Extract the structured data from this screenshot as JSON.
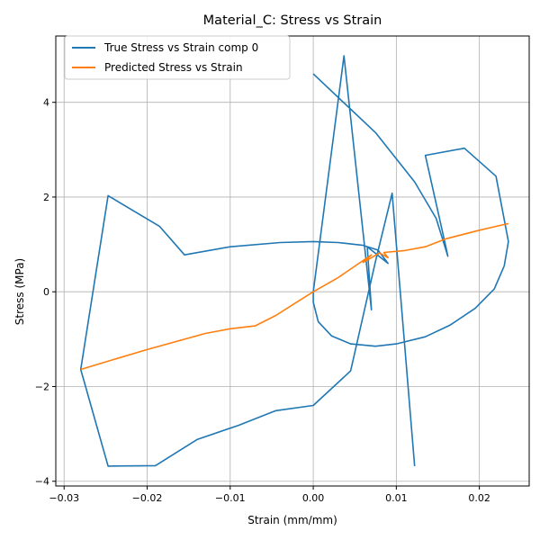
{
  "chart_data": {
    "type": "line",
    "title": "Material_C: Stress vs Strain",
    "xlabel": "Strain (mm/mm)",
    "ylabel": "Stress (MPa)",
    "xlim": [
      -0.031,
      0.026
    ],
    "ylim": [
      -4.1,
      5.4
    ],
    "xticks": [
      -0.03,
      -0.02,
      -0.01,
      0.0,
      0.01,
      0.02
    ],
    "xtick_labels": [
      "−0.03",
      "−0.02",
      "−0.01",
      "0.00",
      "0.01",
      "0.02"
    ],
    "yticks": [
      -4,
      -2,
      0,
      2,
      4
    ],
    "ytick_labels": [
      "−4",
      "−2",
      "0",
      "2",
      "4"
    ],
    "grid": true,
    "legend_position": "top-left",
    "series": [
      {
        "name": "True Stress vs Strain comp 0",
        "color": "#1f77b4",
        "points": [
          [
            0.0,
            4.6
          ],
          [
            0.0075,
            3.36
          ],
          [
            0.0122,
            2.32
          ],
          [
            0.0148,
            1.55
          ],
          [
            0.0162,
            0.75
          ],
          [
            0.0159,
            1.0
          ],
          [
            0.0135,
            2.88
          ],
          [
            0.0182,
            3.03
          ],
          [
            0.022,
            2.44
          ],
          [
            0.0235,
            1.06
          ],
          [
            0.023,
            0.55
          ],
          [
            0.0218,
            0.06
          ],
          [
            0.0195,
            -0.35
          ],
          [
            0.0165,
            -0.7
          ],
          [
            0.0135,
            -0.95
          ],
          [
            0.01,
            -1.1
          ],
          [
            0.0075,
            -1.15
          ],
          [
            0.0045,
            -1.1
          ],
          [
            0.0022,
            -0.93
          ],
          [
            0.0006,
            -0.63
          ],
          [
            0.0,
            -0.22
          ],
          [
            0.0,
            0.0
          ],
          [
            0.0037,
            4.98
          ],
          [
            0.007,
            -0.38
          ],
          [
            0.0065,
            0.95
          ],
          [
            0.009,
            0.6
          ],
          [
            0.0078,
            0.88
          ],
          [
            0.006,
            0.98
          ],
          [
            0.003,
            1.04
          ],
          [
            0.0,
            1.06
          ],
          [
            -0.004,
            1.04
          ],
          [
            -0.01,
            0.95
          ],
          [
            -0.0155,
            0.78
          ],
          [
            -0.0185,
            1.38
          ],
          [
            -0.0247,
            2.03
          ],
          [
            -0.028,
            -1.64
          ],
          [
            -0.0247,
            -3.68
          ],
          [
            -0.019,
            -3.67
          ],
          [
            -0.014,
            -3.12
          ],
          [
            -0.009,
            -2.82
          ],
          [
            -0.0045,
            -2.51
          ],
          [
            0.0,
            -2.4
          ],
          [
            0.0045,
            -1.67
          ],
          [
            0.0075,
            0.65
          ],
          [
            0.0095,
            2.08
          ],
          [
            0.0122,
            -3.68
          ]
        ]
      },
      {
        "name": "Predicted Stress vs Strain",
        "color": "#ff7f0e",
        "points": [
          [
            -0.028,
            -1.64
          ],
          [
            -0.025,
            -1.48
          ],
          [
            -0.02,
            -1.22
          ],
          [
            -0.013,
            -0.88
          ],
          [
            -0.01,
            -0.78
          ],
          [
            -0.007,
            -0.72
          ],
          [
            -0.0045,
            -0.5
          ],
          [
            -0.002,
            -0.22
          ],
          [
            0.0,
            0.0
          ],
          [
            0.003,
            0.3
          ],
          [
            0.0055,
            0.6
          ],
          [
            0.007,
            0.78
          ],
          [
            0.006,
            0.62
          ],
          [
            0.008,
            0.82
          ],
          [
            0.009,
            0.72
          ],
          [
            0.0085,
            0.83
          ],
          [
            0.011,
            0.87
          ],
          [
            0.0135,
            0.95
          ],
          [
            0.016,
            1.12
          ],
          [
            0.02,
            1.3
          ],
          [
            0.0235,
            1.44
          ]
        ]
      }
    ]
  }
}
